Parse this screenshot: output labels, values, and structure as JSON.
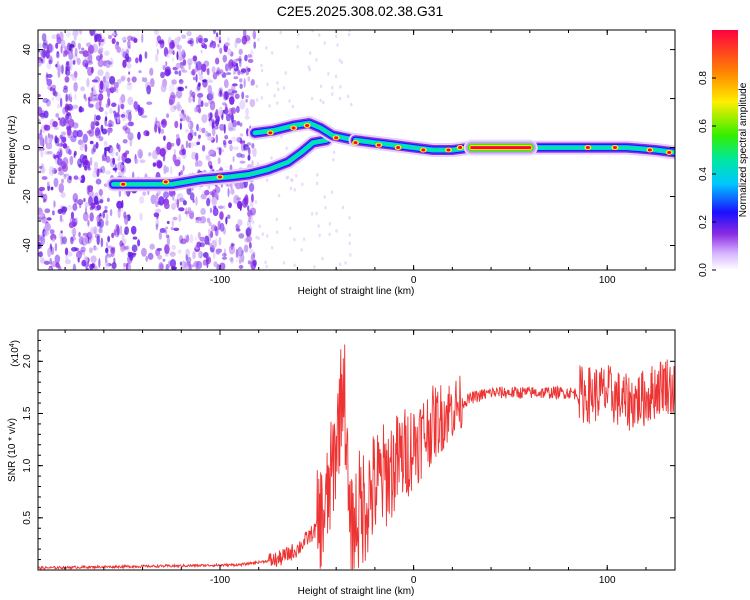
{
  "title": "C2E5.2025.308.02.38.G31",
  "chart_data": [
    {
      "type": "heatmap",
      "name": "spectrogram",
      "xlabel": "Height of straight line (km)",
      "ylabel": "Frequency (Hz)",
      "xlim": [
        -194,
        135
      ],
      "ylim": [
        -50,
        48
      ],
      "xticks": [
        -100,
        0,
        100
      ],
      "xtick_labels": [
        "-100",
        "0",
        "100"
      ],
      "yticks": [
        -40,
        -20,
        0,
        20,
        40
      ],
      "ytick_labels": [
        "-40",
        "-20",
        "0",
        "20",
        "40"
      ],
      "colorbar": {
        "label": "Normalized spectral amplitude",
        "range": [
          0,
          1
        ],
        "ticks": [
          0.0,
          0.2,
          0.4,
          0.6,
          0.8
        ],
        "tick_labels": [
          "0.0",
          "0.2",
          "0.4",
          "0.6",
          "0.8"
        ]
      },
      "tracks": [
        {
          "name": "lower-branch",
          "points": [
            [
              -155,
              -15
            ],
            [
              -140,
              -15
            ],
            [
              -125,
              -15
            ],
            [
              -110,
              -13
            ],
            [
              -95,
              -12
            ],
            [
              -85,
              -11
            ],
            [
              -75,
              -9
            ],
            [
              -65,
              -6
            ],
            [
              -58,
              -2
            ],
            [
              -52,
              2
            ],
            [
              -45,
              3
            ]
          ]
        },
        {
          "name": "upper-branch",
          "points": [
            [
              -82,
              6
            ],
            [
              -72,
              7
            ],
            [
              -62,
              9
            ],
            [
              -54,
              10
            ],
            [
              -48,
              8
            ],
            [
              -42,
              5
            ],
            [
              -36,
              4
            ],
            [
              -30,
              3
            ]
          ]
        },
        {
          "name": "merged-line",
          "points": [
            [
              -30,
              3
            ],
            [
              -20,
              2
            ],
            [
              -10,
              1
            ],
            [
              0,
              0
            ],
            [
              10,
              -1
            ],
            [
              20,
              -1
            ],
            [
              30,
              0
            ],
            [
              60,
              0
            ],
            [
              90,
              0
            ],
            [
              110,
              0
            ],
            [
              125,
              -1
            ],
            [
              135,
              -2
            ]
          ]
        }
      ]
    },
    {
      "type": "line",
      "name": "snr",
      "xlabel": "Height of straight line (km)",
      "ylabel": "SNR (10 * v/v)",
      "multiplier": "(x10",
      "multiplier_exp": "4",
      "multiplier_close": ")",
      "xlim": [
        -194,
        135
      ],
      "ylim": [
        0,
        2.3
      ],
      "xticks": [
        -100,
        0,
        100
      ],
      "xtick_labels": [
        "-100",
        "0",
        "100"
      ],
      "yticks": [
        0.5,
        1.0,
        1.5,
        2.0
      ],
      "ytick_labels": [
        "0.5",
        "1.0",
        "1.5",
        "2.0"
      ],
      "color": "#ee3333",
      "series": [
        {
          "name": "snr",
          "points": [
            [
              -194,
              0.02
            ],
            [
              -160,
              0.03
            ],
            [
              -120,
              0.04
            ],
            [
              -90,
              0.05
            ],
            [
              -70,
              0.1
            ],
            [
              -60,
              0.2
            ],
            [
              -50,
              0.4
            ],
            [
              -45,
              0.6
            ],
            [
              -40,
              1.2
            ],
            [
              -36,
              1.9
            ],
            [
              -33,
              0.3
            ],
            [
              -30,
              0.5
            ],
            [
              -20,
              0.8
            ],
            [
              -10,
              1.0
            ],
            [
              0,
              1.2
            ],
            [
              10,
              1.4
            ],
            [
              20,
              1.55
            ],
            [
              30,
              1.65
            ],
            [
              40,
              1.7
            ],
            [
              50,
              1.7
            ],
            [
              60,
              1.7
            ],
            [
              70,
              1.7
            ],
            [
              80,
              1.7
            ],
            [
              90,
              1.68
            ],
            [
              100,
              1.7
            ],
            [
              110,
              1.6
            ],
            [
              120,
              1.65
            ],
            [
              130,
              1.8
            ],
            [
              135,
              1.7
            ]
          ]
        }
      ]
    }
  ]
}
